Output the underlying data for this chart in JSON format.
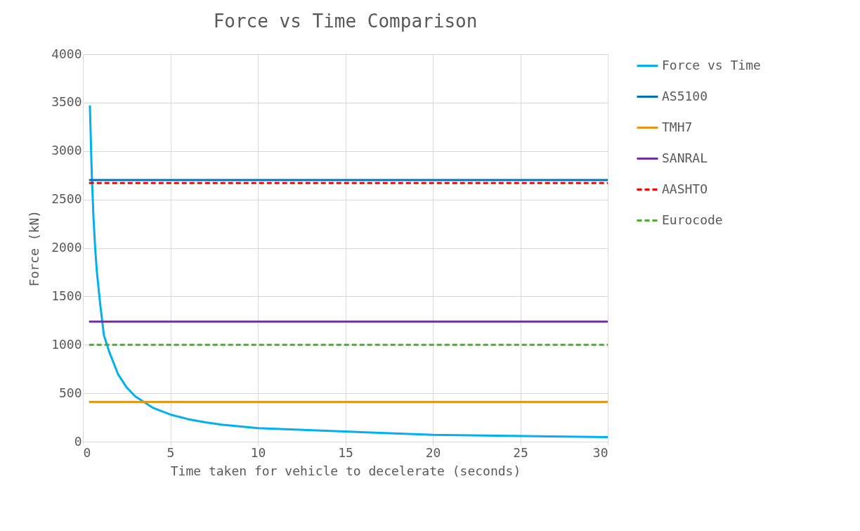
{
  "chart_data": {
    "type": "line",
    "title": "Force vs Time Comparison",
    "xlabel": "Time taken for vehicle to decelerate (seconds)",
    "ylabel": "Force (kN)",
    "xlim": [
      0,
      30
    ],
    "xticks": [
      0,
      5,
      10,
      15,
      20,
      25,
      30
    ],
    "ylim": [
      0,
      4000
    ],
    "yticks": [
      0,
      500,
      1000,
      1500,
      2000,
      2500,
      3000,
      3500,
      4000
    ],
    "grid": true,
    "legend": "right",
    "series": [
      {
        "name": "Force vs Time",
        "color": "#00b0f0",
        "line_style": "solid",
        "x": [
          0.4,
          0.5,
          0.6,
          0.7,
          0.8,
          1,
          1.2,
          1.5,
          2,
          2.5,
          3,
          4,
          5,
          6,
          7,
          8,
          10,
          20,
          30
        ],
        "values": [
          3470,
          2800,
          2330,
          2000,
          1750,
          1400,
          1100,
          930,
          700,
          560,
          467,
          350,
          280,
          233,
          200,
          175,
          140,
          70,
          47
        ]
      },
      {
        "name": "AS5100",
        "color": "#0070c0",
        "line_style": "solid",
        "x": [
          0.35,
          30
        ],
        "values": [
          2700,
          2700
        ]
      },
      {
        "name": "TMH7",
        "color": "#e8961e",
        "line_style": "solid",
        "x": [
          0.35,
          30
        ],
        "values": [
          410,
          410
        ]
      },
      {
        "name": "SANRAL",
        "color": "#7030a0",
        "line_style": "solid",
        "x": [
          0.35,
          30
        ],
        "values": [
          1240,
          1240
        ]
      },
      {
        "name": "AASHTO",
        "color": "#ff0000",
        "line_style": "dashed",
        "x": [
          0.35,
          30
        ],
        "values": [
          2670,
          2670
        ]
      },
      {
        "name": "Eurocode",
        "color": "#4eac30",
        "line_style": "dashed",
        "x": [
          0.35,
          30
        ],
        "values": [
          1000,
          1000
        ]
      }
    ]
  }
}
